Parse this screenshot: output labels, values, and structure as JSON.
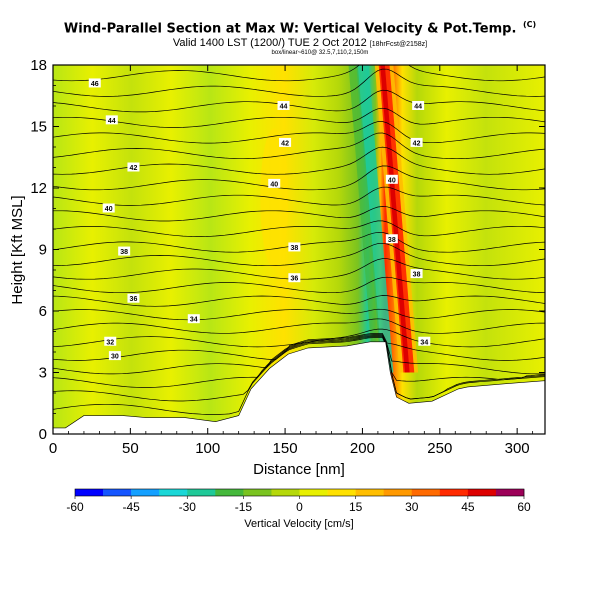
{
  "header": {
    "title": "Wind-Parallel Section at Max W: Vertical Velocity & Pot.Temp.",
    "copyright": "(C)",
    "subtitle_main": "Valid 1400 LST (1200/) TUE 2 Oct 2012",
    "subtitle_small": "[18hrFcst@2158z]",
    "subtitle_line2": "box/linear~610@ 32.5,7,110,2,150m"
  },
  "chart_data": {
    "type": "heatmap",
    "xlabel": "Distance [nm]",
    "ylabel": "Height [Kft MSL]",
    "xlim": [
      0,
      318
    ],
    "ylim": [
      0,
      18
    ],
    "x_ticks": [
      0,
      50,
      100,
      150,
      200,
      250,
      300
    ],
    "y_ticks": [
      0,
      3,
      6,
      9,
      12,
      15,
      18
    ],
    "colorbar": {
      "label": "Vertical Velocity [cm/s]",
      "ticks": [
        -60,
        -45,
        -30,
        -15,
        0,
        15,
        30,
        45,
        60
      ],
      "colors": [
        "#0000ff",
        "#1555ff",
        "#14a0ff",
        "#1ad7d7",
        "#1fc998",
        "#45b83b",
        "#7ac320",
        "#b5d80a",
        "#e8f000",
        "#ffe100",
        "#ffbe00",
        "#ff9900",
        "#ff6a00",
        "#ff2a00",
        "#dd0000",
        "#9c0058"
      ]
    },
    "terrain": [
      [
        0,
        0.3
      ],
      [
        8,
        0.3
      ],
      [
        20,
        0.9
      ],
      [
        45,
        0.9
      ],
      [
        60,
        0.8
      ],
      [
        85,
        0.8
      ],
      [
        105,
        0.6
      ],
      [
        120,
        0.9
      ],
      [
        128,
        2.2
      ],
      [
        140,
        3.2
      ],
      [
        152,
        3.9
      ],
      [
        165,
        4.2
      ],
      [
        190,
        4.3
      ],
      [
        205,
        4.5
      ],
      [
        215,
        4.5
      ],
      [
        218,
        3.0
      ],
      [
        222,
        1.8
      ],
      [
        230,
        1.5
      ],
      [
        245,
        1.6
      ],
      [
        262,
        2.2
      ],
      [
        268,
        2.3
      ],
      [
        300,
        2.5
      ],
      [
        318,
        2.6
      ]
    ],
    "vertical_velocity_features": [
      {
        "name": "updraft",
        "x_center": 218,
        "peak_cm_s": 60
      },
      {
        "name": "downdraft",
        "x_center": 205,
        "peak_cm_s": -20
      }
    ],
    "contour_labels": [
      {
        "value": "46",
        "x": 27,
        "y": 17.1
      },
      {
        "value": "44",
        "x": 38,
        "y": 15.3
      },
      {
        "value": "42",
        "x": 52,
        "y": 13.0
      },
      {
        "value": "40",
        "x": 36,
        "y": 11.0
      },
      {
        "value": "38",
        "x": 46,
        "y": 8.9
      },
      {
        "value": "36",
        "x": 52,
        "y": 6.6
      },
      {
        "value": "34",
        "x": 91,
        "y": 5.6
      },
      {
        "value": "32",
        "x": 37,
        "y": 4.5
      },
      {
        "value": "30",
        "x": 40,
        "y": 3.8
      },
      {
        "value": "44",
        "x": 149,
        "y": 16.0
      },
      {
        "value": "42",
        "x": 150,
        "y": 14.2
      },
      {
        "value": "40",
        "x": 143,
        "y": 12.2
      },
      {
        "value": "38",
        "x": 156,
        "y": 9.1
      },
      {
        "value": "36",
        "x": 156,
        "y": 7.6
      },
      {
        "value": "44",
        "x": 236,
        "y": 16.0
      },
      {
        "value": "42",
        "x": 235,
        "y": 14.2
      },
      {
        "value": "40",
        "x": 219,
        "y": 12.4
      },
      {
        "value": "38",
        "x": 219,
        "y": 9.5
      },
      {
        "value": "38",
        "x": 235,
        "y": 7.8
      },
      {
        "value": "34",
        "x": 240,
        "y": 4.5
      }
    ]
  }
}
